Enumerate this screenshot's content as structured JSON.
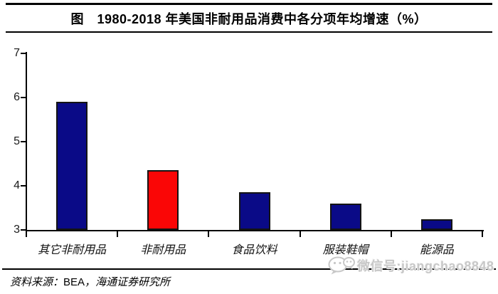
{
  "header": {
    "title": "图　1980-2018 年美国非耐用品消费中各分项年均增速（%）"
  },
  "chart_data": {
    "type": "bar",
    "title": "1980-2018 年美国非耐用品消费中各分项年均增速（%）",
    "categories": [
      "其它非耐用品",
      "非耐用品",
      "食品饮料",
      "服装鞋帽",
      "能源品"
    ],
    "values": [
      5.9,
      4.35,
      3.85,
      3.6,
      3.25
    ],
    "bar_colors": [
      "#0A0A87",
      "#FA0606",
      "#0A0A87",
      "#0A0A87",
      "#0A0A87"
    ],
    "xlabel": "",
    "ylabel": "",
    "ylim": [
      3,
      7
    ],
    "yticks": [
      3,
      4,
      5,
      6,
      7
    ],
    "grid": false,
    "legend": "none"
  },
  "footer": {
    "source_prefix": "资料来源：",
    "source_org": "BEA",
    "source_rest": "，海通证券研究所"
  },
  "watermark": {
    "icon": "wechat-icon",
    "text": "微信号:jiangchao8848"
  },
  "colors": {
    "bar_navy": "#0A0A87",
    "bar_red": "#FA0606",
    "axis": "#000000",
    "rule": "#000000",
    "watermark_gray": "#C8C8C8"
  }
}
